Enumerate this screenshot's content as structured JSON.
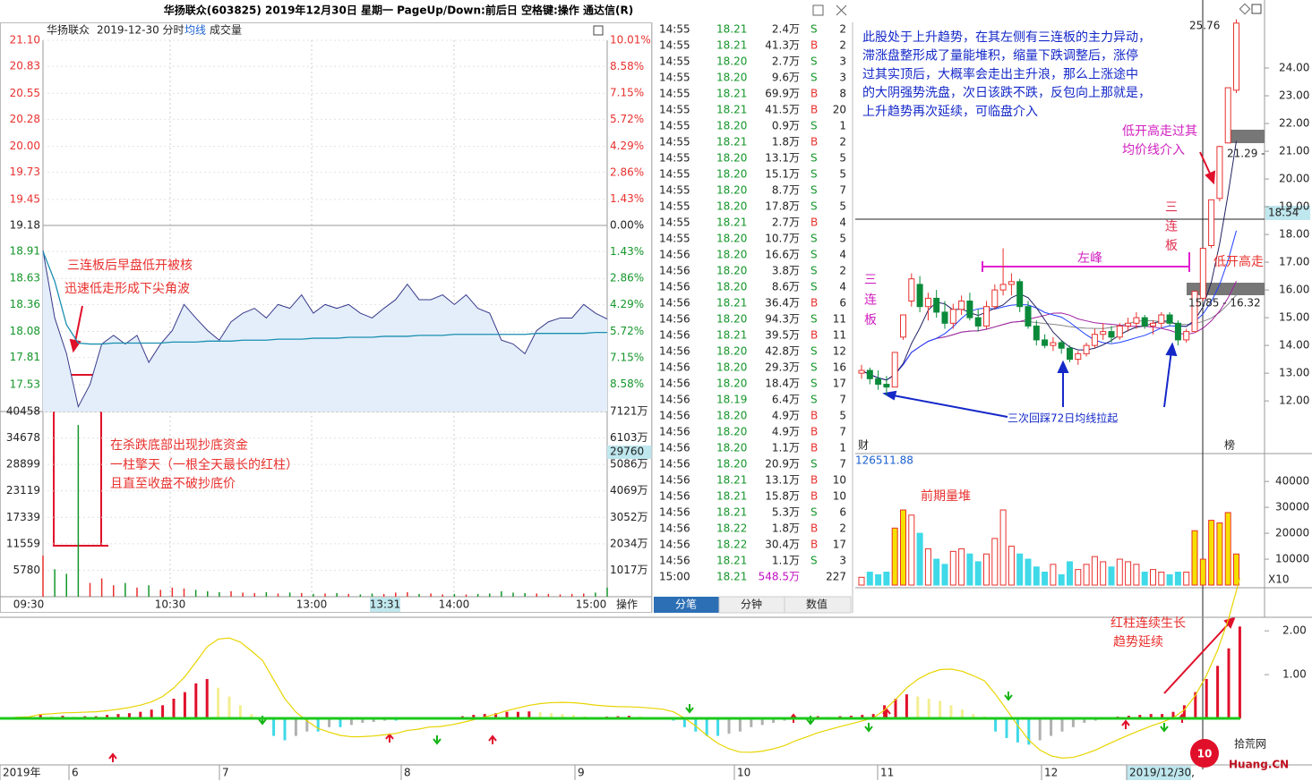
{
  "title": "华扬联众(603825) 2019年12月30日 星期一 PageUp/Down:前后日 空格键:操作 通达信(R)",
  "intraday": {
    "header": [
      "华扬联众",
      "2019-12-30 分时",
      "均线",
      "成交量"
    ],
    "ylim": [
      17.25,
      21.1
    ],
    "yticks": [
      {
        "value": 21.1,
        "label": "21.10"
      },
      {
        "value": 20.83,
        "label": "20.83"
      },
      {
        "value": 20.55,
        "label": "20.55"
      },
      {
        "value": 20.28,
        "label": "20.28"
      },
      {
        "value": 20,
        "label": "20.00"
      },
      {
        "value": 19.73,
        "label": "19.73"
      },
      {
        "value": 19.45,
        "label": "19.45"
      },
      {
        "value": 19.18,
        "label": "19.18"
      },
      {
        "value": 18.91,
        "label": "18.91"
      },
      {
        "value": 18.63,
        "label": "18.63"
      },
      {
        "value": 18.36,
        "label": "18.36"
      },
      {
        "value": 18.08,
        "label": "18.08"
      },
      {
        "value": 17.81,
        "label": "17.81"
      },
      {
        "value": 17.53,
        "label": "17.53"
      }
    ],
    "y2lim": [
      -10.06,
      10.01
    ],
    "y2ticks": [
      {
        "value": 10.01,
        "label": "10.01%"
      },
      {
        "value": 8.58,
        "label": "8.58%"
      },
      {
        "value": 7.15,
        "label": "7.15%"
      },
      {
        "value": 5.72,
        "label": "5.72%"
      },
      {
        "value": 4.29,
        "label": "4.29%"
      },
      {
        "value": 2.86,
        "label": "2.86%"
      },
      {
        "value": 1.43,
        "label": "1.43%"
      },
      {
        "value": 0,
        "label": "0.00%"
      },
      {
        "value": -1.43,
        "label": "1.43%"
      },
      {
        "value": -2.86,
        "label": "2.86%"
      },
      {
        "value": -4.29,
        "label": "4.29%"
      },
      {
        "value": -5.72,
        "label": "5.72%"
      },
      {
        "value": -7.15,
        "label": "7.15%"
      },
      {
        "value": -8.58,
        "label": "8.58%"
      }
    ],
    "prices": [
      18.92,
      18.22,
      17.85,
      17.3,
      17.53,
      17.95,
      18.04,
      17.95,
      18.04,
      17.76,
      17.95,
      18.09,
      18.36,
      18.22,
      18.09,
      17.99,
      18.18,
      18.27,
      18.32,
      18.22,
      18.36,
      18.32,
      18.46,
      18.27,
      18.36,
      18.32,
      18.36,
      18.27,
      18.22,
      18.32,
      18.41,
      18.57,
      18.41,
      18.41,
      18.46,
      18.36,
      18.46,
      18.32,
      18.27,
      17.99,
      17.95,
      17.85,
      18.09,
      18.18,
      18.22,
      18.22,
      18.36,
      18.27,
      18.21
    ],
    "avg": [
      18.91,
      18.6,
      18.15,
      17.96,
      17.95,
      17.95,
      17.96,
      17.96,
      17.96,
      17.96,
      17.96,
      17.97,
      17.97,
      17.97,
      17.98,
      17.98,
      17.98,
      17.99,
      17.99,
      17.99,
      18.0,
      18.0,
      18.0,
      18.01,
      18.01,
      18.01,
      18.02,
      18.02,
      18.02,
      18.03,
      18.03,
      18.03,
      18.04,
      18.04,
      18.04,
      18.05,
      18.05,
      18.05,
      18.05,
      18.05,
      18.05,
      18.05,
      18.06,
      18.06,
      18.06,
      18.06,
      18.06,
      18.07,
      18.07
    ],
    "vol_ylim": [
      0,
      40458
    ],
    "vol_yticks": [
      40458,
      34678,
      28899,
      23119,
      17339,
      11559,
      5780
    ],
    "amount_labels": [
      "7121万",
      "6103万",
      "5086万",
      "4069万",
      "3052万",
      "2034万",
      "1017万"
    ],
    "cursor_volume": "29760",
    "volumes": [
      9000,
      6000,
      5000,
      37500,
      3000,
      4000,
      2500,
      3000,
      2000,
      2500,
      1500,
      2000,
      1800,
      1500,
      1200,
      1000,
      1200,
      900,
      800,
      1000,
      700,
      900,
      800,
      600,
      700,
      800,
      600,
      500,
      700,
      600,
      900,
      1000,
      600,
      700,
      500,
      600,
      500,
      600,
      700,
      1200,
      900,
      800,
      700,
      600,
      500,
      600,
      700,
      900,
      2000
    ],
    "time_labels": [
      "09:30",
      "10:30",
      "13:00",
      "13:31",
      "14:00",
      "15:00"
    ],
    "operate": "操作",
    "annotations": [
      "三连板后早盘低开被核",
      "迅速低走形成下尖角波",
      "在杀跌底部出现抄底资金",
      "一柱擎天（一根全天最长的红柱）",
      "且直至收盘不破抄底价"
    ]
  },
  "trades": {
    "rows": [
      [
        "14:55",
        "18.21",
        "2.4万",
        "S",
        "2"
      ],
      [
        "14:55",
        "18.21",
        "41.3万",
        "B",
        "2"
      ],
      [
        "14:55",
        "18.20",
        "2.7万",
        "S",
        "3"
      ],
      [
        "14:55",
        "18.20",
        "9.6万",
        "S",
        "3"
      ],
      [
        "14:55",
        "18.21",
        "69.9万",
        "B",
        "8"
      ],
      [
        "14:55",
        "18.21",
        "41.5万",
        "B",
        "20"
      ],
      [
        "14:55",
        "18.20",
        "0.9万",
        "S",
        "1"
      ],
      [
        "14:55",
        "18.21",
        "1.8万",
        "B",
        "2"
      ],
      [
        "14:55",
        "18.20",
        "13.1万",
        "S",
        "5"
      ],
      [
        "14:55",
        "18.20",
        "15.1万",
        "S",
        "5"
      ],
      [
        "14:55",
        "18.20",
        "8.7万",
        "S",
        "7"
      ],
      [
        "14:55",
        "18.20",
        "17.8万",
        "S",
        "5"
      ],
      [
        "14:55",
        "18.21",
        "2.7万",
        "B",
        "4"
      ],
      [
        "14:55",
        "18.20",
        "10.7万",
        "S",
        "5"
      ],
      [
        "14:56",
        "18.20",
        "16.6万",
        "S",
        "4"
      ],
      [
        "14:56",
        "18.20",
        "3.8万",
        "S",
        "2"
      ],
      [
        "14:56",
        "18.20",
        "8.6万",
        "S",
        "4"
      ],
      [
        "14:56",
        "18.21",
        "36.4万",
        "B",
        "6"
      ],
      [
        "14:56",
        "18.20",
        "94.3万",
        "S",
        "11"
      ],
      [
        "14:56",
        "18.21",
        "39.5万",
        "B",
        "11"
      ],
      [
        "14:56",
        "18.20",
        "42.8万",
        "S",
        "12"
      ],
      [
        "14:56",
        "18.20",
        "29.3万",
        "S",
        "16"
      ],
      [
        "14:56",
        "18.20",
        "18.4万",
        "S",
        "17"
      ],
      [
        "14:56",
        "18.19",
        "6.4万",
        "S",
        "7"
      ],
      [
        "14:56",
        "18.20",
        "4.9万",
        "B",
        "5"
      ],
      [
        "14:56",
        "18.20",
        "4.9万",
        "B",
        "7"
      ],
      [
        "14:56",
        "18.20",
        "1.1万",
        "B",
        "1"
      ],
      [
        "14:56",
        "18.20",
        "20.9万",
        "S",
        "7"
      ],
      [
        "14:56",
        "18.21",
        "13.1万",
        "B",
        "10"
      ],
      [
        "14:56",
        "18.21",
        "15.8万",
        "B",
        "10"
      ],
      [
        "14:56",
        "18.21",
        "5.3万",
        "S",
        "6"
      ],
      [
        "14:56",
        "18.22",
        "1.8万",
        "B",
        "2"
      ],
      [
        "14:56",
        "18.22",
        "30.4万",
        "B",
        "17"
      ],
      [
        "14:56",
        "18.21",
        "1.1万",
        "S",
        "3"
      ],
      [
        "15:00",
        "18.21",
        "548.5万",
        "",
        "227"
      ]
    ],
    "tabs": [
      "分笔",
      "分钟",
      "数值"
    ]
  },
  "kline": {
    "ylim": [
      10.65,
      26.13
    ],
    "yticks": [
      {
        "value": 24,
        "label": "24.00"
      },
      {
        "value": 23,
        "label": "23.00"
      },
      {
        "value": 22,
        "label": "22.00"
      },
      {
        "value": 21,
        "label": "21.00"
      },
      {
        "value": 20,
        "label": "20.00"
      },
      {
        "value": 19,
        "label": "19.00"
      },
      {
        "value": 18,
        "label": "18.00"
      },
      {
        "value": 17,
        "label": "17.00"
      },
      {
        "value": 16,
        "label": "16.00"
      },
      {
        "value": 15,
        "label": "15.00"
      },
      {
        "value": 14,
        "label": "14.00"
      },
      {
        "value": 13,
        "label": "13.00"
      },
      {
        "value": 12,
        "label": "12.00"
      }
    ],
    "cursor_price": "18.54",
    "candles": [
      [
        13.0,
        13.3,
        12.8,
        13.1
      ],
      [
        13.1,
        13.2,
        12.6,
        12.8
      ],
      [
        12.8,
        13.1,
        12.4,
        12.6
      ],
      [
        12.6,
        12.9,
        12.2,
        12.5
      ],
      [
        12.5,
        13.75,
        12.5,
        13.75
      ],
      [
        14.3,
        15.1,
        14.2,
        15.1
      ],
      [
        15.6,
        16.6,
        15.4,
        16.4
      ],
      [
        16.2,
        16.5,
        15.2,
        15.4
      ],
      [
        15.4,
        15.9,
        14.9,
        15.7
      ],
      [
        15.7,
        16.0,
        15.0,
        15.2
      ],
      [
        15.2,
        15.6,
        14.6,
        14.8
      ],
      [
        14.8,
        15.5,
        14.6,
        15.3
      ],
      [
        15.3,
        15.8,
        15.1,
        15.6
      ],
      [
        15.6,
        15.9,
        14.9,
        15.0
      ],
      [
        15.0,
        15.3,
        14.5,
        14.7
      ],
      [
        14.7,
        15.6,
        14.6,
        15.4
      ],
      [
        15.4,
        16.2,
        15.3,
        16.0
      ],
      [
        16.0,
        17.5,
        15.8,
        16.2
      ],
      [
        16.2,
        16.6,
        15.8,
        16.3
      ],
      [
        16.3,
        16.4,
        15.2,
        15.4
      ],
      [
        15.4,
        15.6,
        14.6,
        14.7
      ],
      [
        14.7,
        14.9,
        14.0,
        14.2
      ],
      [
        14.2,
        14.4,
        13.9,
        14.0
      ],
      [
        14.0,
        14.3,
        13.8,
        14.1
      ],
      [
        14.1,
        14.2,
        13.7,
        13.9
      ],
      [
        13.9,
        14.0,
        13.4,
        13.5
      ],
      [
        13.5,
        13.8,
        13.3,
        13.7
      ],
      [
        13.7,
        14.1,
        13.6,
        14.0
      ],
      [
        14.0,
        14.6,
        13.9,
        14.4
      ],
      [
        14.4,
        14.8,
        14.2,
        14.5
      ],
      [
        14.5,
        14.7,
        14.1,
        14.3
      ],
      [
        14.3,
        14.8,
        14.2,
        14.7
      ],
      [
        14.7,
        15.0,
        14.5,
        14.8
      ],
      [
        14.8,
        15.2,
        14.6,
        15.0
      ],
      [
        15.0,
        15.1,
        14.6,
        14.7
      ],
      [
        14.7,
        14.9,
        14.4,
        14.8
      ],
      [
        14.8,
        15.2,
        14.6,
        15.1
      ],
      [
        15.1,
        15.2,
        14.7,
        14.8
      ],
      [
        14.8,
        14.9,
        14.0,
        14.2
      ],
      [
        14.2,
        14.6,
        14.1,
        14.5
      ],
      [
        14.5,
        15.95,
        14.5,
        15.95
      ],
      [
        15.7,
        17.5,
        15.6,
        17.5
      ],
      [
        17.6,
        19.25,
        17.5,
        19.25
      ],
      [
        19.3,
        21.2,
        19.2,
        21.17
      ],
      [
        21.3,
        23.29,
        21.29,
        23.29
      ],
      [
        23.2,
        25.76,
        23.1,
        25.62
      ]
    ],
    "vol_ylim": [
      0,
      48000
    ],
    "vol_yticks": [
      10000,
      20000,
      30000,
      40000
    ],
    "volumes": [
      3000,
      5000,
      4000,
      5000,
      22000,
      29000,
      27000,
      20000,
      14000,
      10000,
      8000,
      13000,
      14000,
      12000,
      9000,
      12000,
      18000,
      29000,
      15000,
      12000,
      10000,
      7000,
      5000,
      8000,
      4000,
      9000,
      6000,
      8000,
      11000,
      9000,
      7000,
      10000,
      9000,
      8000,
      5000,
      6000,
      5000,
      4000,
      5000,
      5000,
      21000,
      10000,
      25000,
      24000,
      28000,
      12000
    ],
    "vol_readout": "126511.88",
    "vol_scale": "X10",
    "high_label": "25.76",
    "low_label": "21.29 -",
    "range_label": "15.85 - 16.32",
    "comment": [
      "此股处于上升趋势，在其左侧有三连板的主力异动，",
      "滞涨盘整形成了量能堆积，缩量下跌调整后，涨停",
      "过其实顶后，大概率会走出主升浪，那么上涨途中",
      "的大阴强势洗盘，次日该跌不跌，反包向上那就是，",
      "上升趋势再次延续，可临盘介入"
    ],
    "entry_note": [
      "低开高走过其",
      "均价线介入"
    ],
    "board_right": [
      "三",
      "连",
      "板"
    ],
    "board_left": [
      "三",
      "连",
      "板"
    ],
    "low_open_high": "低开高走",
    "left_peak": "左峰",
    "pullback_note": "三次回踩72日均线拉起",
    "volume_pile": "前期量堆",
    "marker_left": "财",
    "marker_right": "榜"
  },
  "macd": {
    "ylim": [
      -0.96,
      2.31
    ],
    "yticks": [
      {
        "value": 2,
        "label": "2.00"
      },
      {
        "value": 1,
        "label": "1.00"
      }
    ],
    "bars": [
      0.02,
      0.03,
      0.02,
      0.1,
      0.05,
      0.06,
      0.04,
      0.05,
      0.05,
      0.08,
      0.1,
      0.12,
      0.15,
      0.2,
      0.3,
      0.45,
      0.6,
      0.8,
      0.9,
      0.7,
      0.5,
      0.3,
      0.1,
      0.02,
      -0.4,
      -0.5,
      -0.4,
      -0.3,
      -0.3,
      -0.2,
      -0.2,
      -0.15,
      -0.1,
      -0.08,
      -0.05,
      -0.05,
      0.03,
      -0.02,
      0.02,
      -0.03,
      0.02,
      0.05,
      0.08,
      0.1,
      0.12,
      0.15,
      0.15,
      0.16,
      0.14,
      0.12,
      0.1,
      0.08,
      0.05,
      0.03,
      0.04,
      0.05,
      0.06,
      0.05,
      0.03,
      0.02,
      -0.05,
      -0.2,
      -0.3,
      -0.4,
      -0.4,
      -0.35,
      -0.3,
      -0.2,
      -0.15,
      -0.1,
      -0.05,
      0.03,
      0.02,
      0.05,
      0.04,
      0.05,
      0.06,
      0.08,
      0.1,
      0.3,
      0.45,
      0.55,
      0.5,
      0.45,
      0.4,
      0.3,
      0.2,
      0.1,
      0.05,
      -0.3,
      -0.45,
      -0.55,
      -0.6,
      -0.5,
      -0.4,
      -0.3,
      -0.2,
      -0.1,
      -0.05,
      0.02,
      0.04,
      0.06,
      0.08,
      0.1,
      0.1,
      0.15,
      0.3,
      0.6,
      0.9,
      1.2,
      1.6,
      2.1
    ],
    "date_labels": [
      "2019年",
      "6",
      "7",
      "8",
      "9",
      "10",
      "11",
      "12",
      "2019/12/30,"
    ],
    "annotations": [
      "红柱连续生长",
      "趋势延续"
    ]
  },
  "logo": {
    "name": "拾荒网",
    "site": "Huang.CN",
    "mark": "10"
  }
}
